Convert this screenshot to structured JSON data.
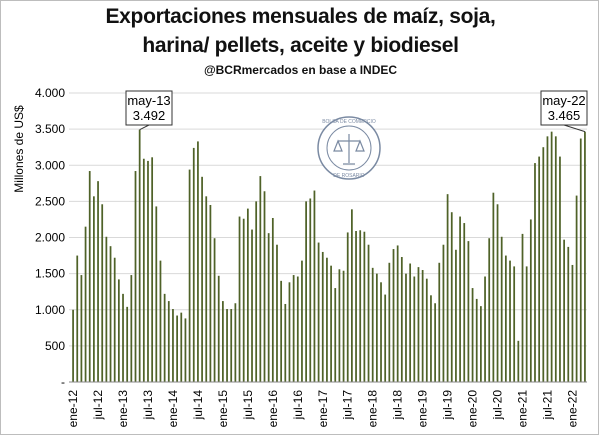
{
  "chart_data": {
    "type": "bar",
    "title_line1": "Exportaciones mensuales de maíz, soja,",
    "title_line2": "harina/ pellets, aceite y biodiesel",
    "subtitle": "@BCRmercados en base a INDEC",
    "ylabel": "Millones de US$",
    "ylim": [
      0,
      4000
    ],
    "y_ticks": [
      "-",
      "500",
      "1.000",
      "1.500",
      "2.000",
      "2.500",
      "3.000",
      "3.500",
      "4.000"
    ],
    "x_tick_labels": [
      "ene-12",
      "jul-12",
      "ene-13",
      "jul-13",
      "ene-14",
      "jul-14",
      "ene-15",
      "jul-15",
      "ene-16",
      "jul-16",
      "ene-17",
      "jul-17",
      "ene-18",
      "jul-18",
      "ene-19",
      "jul-19",
      "ene-20",
      "jul-20",
      "ene-21",
      "jul-21",
      "ene-22"
    ],
    "bar_color": "#4f6228",
    "series": [
      {
        "values": [
          1000,
          1750,
          1480,
          2150,
          2920,
          2570,
          2780,
          2460,
          2010,
          1880,
          1720,
          1420,
          1220,
          1040,
          1480,
          2920,
          3492,
          3090,
          3060,
          3110,
          2430,
          1680,
          1220,
          1120,
          1010,
          920,
          960,
          880,
          2940,
          3240,
          3330,
          2840,
          2570,
          2450,
          1990,
          1470,
          1120,
          1010,
          1010,
          1090,
          2290,
          2260,
          2400,
          2110,
          2500,
          2850,
          2640,
          2060,
          2270,
          1900,
          1400,
          1080,
          1380,
          1480,
          1460,
          1680,
          2500,
          2540,
          2650,
          1930,
          1800,
          1720,
          1610,
          1300,
          1560,
          1540,
          2070,
          2390,
          2090,
          2100,
          2080,
          1900,
          1580,
          1500,
          1380,
          1210,
          1650,
          1840,
          1890,
          1730,
          1500,
          1640,
          1460,
          1590,
          1550,
          1430,
          1200,
          1090,
          1650,
          1900,
          2600,
          2350,
          1830,
          2290,
          2200,
          1950,
          1300,
          1150,
          1050,
          1460,
          1990,
          2620,
          2460,
          2010,
          1750,
          1680,
          1600,
          570,
          2050,
          1600,
          2250,
          3030,
          3120,
          3250,
          3400,
          3465,
          3400,
          3120,
          1970,
          1870,
          1620,
          2580,
          3370,
          3465
        ]
      }
    ],
    "annotations": [
      {
        "label": "may-13",
        "value": "3.492"
      },
      {
        "label": "may-22",
        "value": "3.465"
      }
    ],
    "logo_text": "BOLSA DE COMERCIO DE ROSARIO"
  }
}
